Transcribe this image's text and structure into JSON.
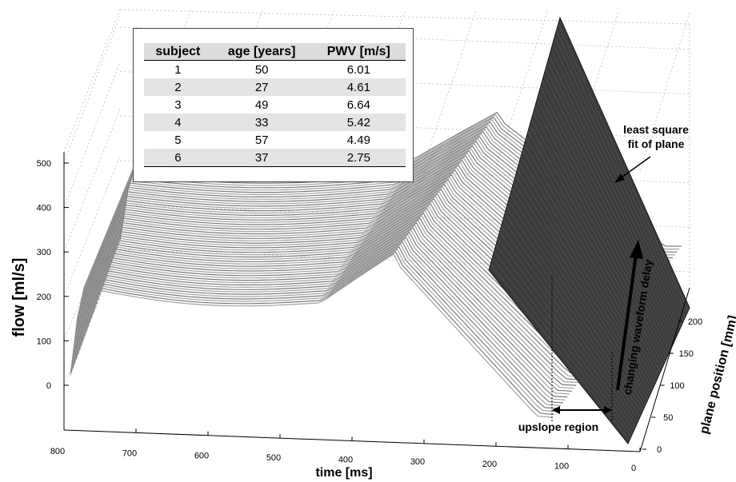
{
  "chart_data": {
    "type": "surface",
    "description_axes": {
      "x": "time [ms]",
      "y": "plane position [mm]",
      "z": "flow [ml/s]"
    },
    "x_ticks": [
      "800",
      "700",
      "600",
      "500",
      "400",
      "300",
      "200",
      "100",
      "0"
    ],
    "y_ticks": [
      "0",
      "50",
      "100",
      "150",
      "200"
    ],
    "z_ticks": [
      "0",
      "100",
      "200",
      "300",
      "400",
      "500"
    ],
    "xlim": [
      0,
      800
    ],
    "ylim": [
      0,
      230
    ],
    "zlim": [
      0,
      500
    ],
    "grid": true,
    "xlabel": "time [ms]",
    "ylabel": "plane position [mm]",
    "zlabel": "flow [ml/s]",
    "annotations": {
      "plane_fit": "least square\nfit of plane",
      "plane_fit_line1": "least square",
      "plane_fit_line2": "fit of plane",
      "upslope": "upslope region",
      "delay": "changing waveform delay"
    },
    "table": {
      "headers": [
        "subject",
        "age [years]",
        "PWV [m/s]"
      ],
      "rows": [
        [
          "1",
          "50",
          "6.01"
        ],
        [
          "2",
          "27",
          "4.61"
        ],
        [
          "3",
          "49",
          "6.64"
        ],
        [
          "4",
          "33",
          "5.42"
        ],
        [
          "5",
          "57",
          "4.49"
        ],
        [
          "6",
          "37",
          "2.75"
        ]
      ]
    }
  }
}
